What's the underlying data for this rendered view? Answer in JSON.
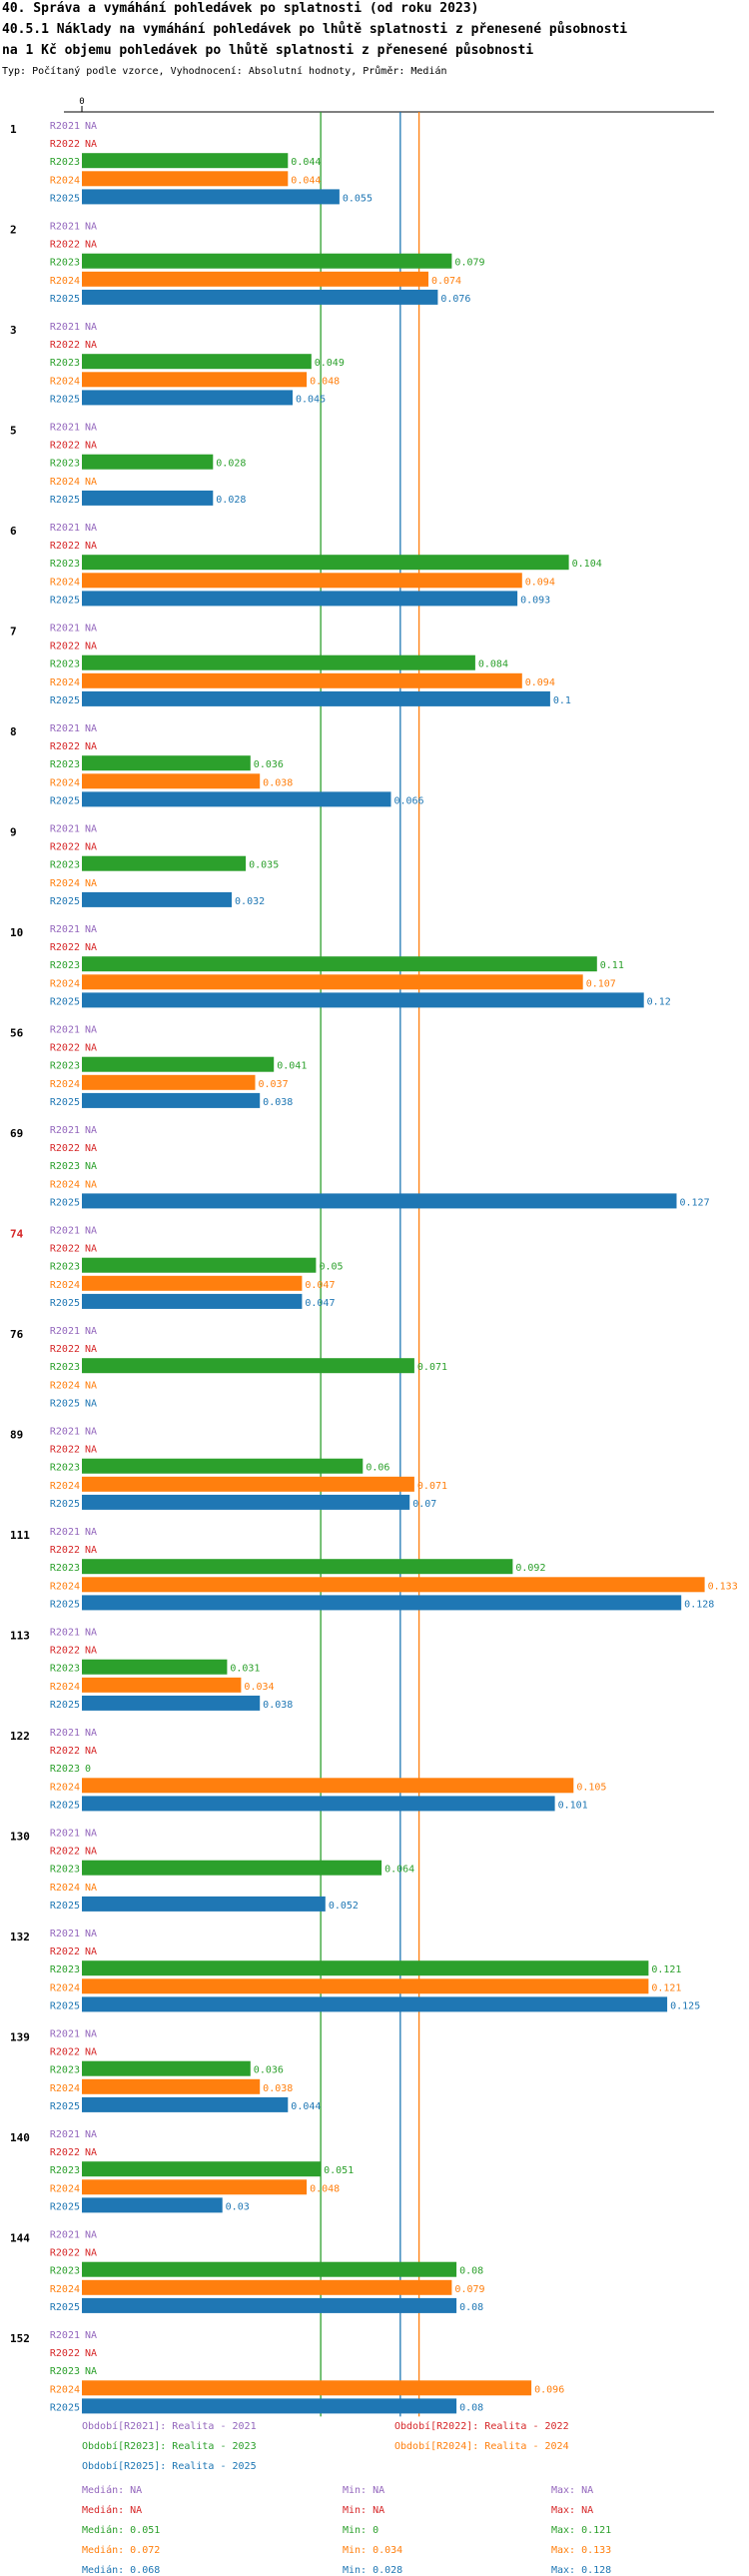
{
  "header": {
    "title1": "40. Správa a vymáhání pohledávek po splatnosti (od roku 2023)",
    "title2": "40.5.1 Náklady na vymáhání pohledávek po lhůtě splatnosti z přenesené působnosti",
    "title3": "na 1 Kč objemu pohledávek po lhůtě splatnosti z přenesené působnosti",
    "subtitle": "Typ: Počítaný podle vzorce, Vyhodnocení: Absolutní hodnoty, Průměr: Medián"
  },
  "colors": {
    "R2021": "#9467bd",
    "R2022": "#d62728",
    "R2023": "#2ca02c",
    "R2024": "#ff7f0e",
    "R2025": "#1f77b4",
    "highlight_group": "#d62728",
    "axis": "#000000"
  },
  "chart_data": {
    "type": "bar",
    "orientation": "horizontal",
    "xlim": [
      0,
      0.135
    ],
    "x_tick_labels": [
      "0"
    ],
    "series_names": [
      "R2021",
      "R2022",
      "R2023",
      "R2024",
      "R2025"
    ],
    "na_label": "NA",
    "highlighted_group": "74",
    "groups": [
      {
        "label": "1",
        "values": [
          null,
          null,
          0.044,
          0.044,
          0.055
        ],
        "texts": [
          "NA",
          "NA",
          "0.044",
          "0.044",
          "0.055"
        ]
      },
      {
        "label": "2",
        "values": [
          null,
          null,
          0.079,
          0.074,
          0.076
        ],
        "texts": [
          "NA",
          "NA",
          "0.079",
          "0.074",
          "0.076"
        ]
      },
      {
        "label": "3",
        "values": [
          null,
          null,
          0.049,
          0.048,
          0.045
        ],
        "texts": [
          "NA",
          "NA",
          "0.049",
          "0.048",
          "0.045"
        ]
      },
      {
        "label": "5",
        "values": [
          null,
          null,
          0.028,
          null,
          0.028
        ],
        "texts": [
          "NA",
          "NA",
          "0.028",
          "NA",
          "0.028"
        ]
      },
      {
        "label": "6",
        "values": [
          null,
          null,
          0.104,
          0.094,
          0.093
        ],
        "texts": [
          "NA",
          "NA",
          "0.104",
          "0.094",
          "0.093"
        ]
      },
      {
        "label": "7",
        "values": [
          null,
          null,
          0.084,
          0.094,
          0.1
        ],
        "texts": [
          "NA",
          "NA",
          "0.084",
          "0.094",
          "0.1"
        ]
      },
      {
        "label": "8",
        "values": [
          null,
          null,
          0.036,
          0.038,
          0.066
        ],
        "texts": [
          "NA",
          "NA",
          "0.036",
          "0.038",
          "0.066"
        ]
      },
      {
        "label": "9",
        "values": [
          null,
          null,
          0.035,
          null,
          0.032
        ],
        "texts": [
          "NA",
          "NA",
          "0.035",
          "NA",
          "0.032"
        ]
      },
      {
        "label": "10",
        "values": [
          null,
          null,
          0.11,
          0.107,
          0.12
        ],
        "texts": [
          "NA",
          "NA",
          "0.11",
          "0.107",
          "0.12"
        ]
      },
      {
        "label": "56",
        "values": [
          null,
          null,
          0.041,
          0.037,
          0.038
        ],
        "texts": [
          "NA",
          "NA",
          "0.041",
          "0.037",
          "0.038"
        ]
      },
      {
        "label": "69",
        "values": [
          null,
          null,
          null,
          null,
          0.127
        ],
        "texts": [
          "NA",
          "NA",
          "NA",
          "NA",
          "0.127"
        ]
      },
      {
        "label": "74",
        "values": [
          null,
          null,
          0.05,
          0.047,
          0.047
        ],
        "texts": [
          "NA",
          "NA",
          "0.05",
          "0.047",
          "0.047"
        ]
      },
      {
        "label": "76",
        "values": [
          null,
          null,
          0.071,
          null,
          null
        ],
        "texts": [
          "NA",
          "NA",
          "0.071",
          "NA",
          "NA"
        ]
      },
      {
        "label": "89",
        "values": [
          null,
          null,
          0.06,
          0.071,
          0.07
        ],
        "texts": [
          "NA",
          "NA",
          "0.06",
          "0.071",
          "0.07"
        ]
      },
      {
        "label": "111",
        "values": [
          null,
          null,
          0.092,
          0.133,
          0.128
        ],
        "texts": [
          "NA",
          "NA",
          "0.092",
          "0.133",
          "0.128"
        ]
      },
      {
        "label": "113",
        "values": [
          null,
          null,
          0.031,
          0.034,
          0.038
        ],
        "texts": [
          "NA",
          "NA",
          "0.031",
          "0.034",
          "0.038"
        ]
      },
      {
        "label": "122",
        "values": [
          null,
          null,
          0,
          0.105,
          0.101
        ],
        "texts": [
          "NA",
          "NA",
          "0",
          "0.105",
          "0.101"
        ]
      },
      {
        "label": "130",
        "values": [
          null,
          null,
          0.064,
          null,
          0.052
        ],
        "texts": [
          "NA",
          "NA",
          "0.064",
          "NA",
          "0.052"
        ]
      },
      {
        "label": "132",
        "values": [
          null,
          null,
          0.121,
          0.121,
          0.125
        ],
        "texts": [
          "NA",
          "NA",
          "0.121",
          "0.121",
          "0.125"
        ]
      },
      {
        "label": "139",
        "values": [
          null,
          null,
          0.036,
          0.038,
          0.044
        ],
        "texts": [
          "NA",
          "NA",
          "0.036",
          "0.038",
          "0.044"
        ]
      },
      {
        "label": "140",
        "values": [
          null,
          null,
          0.051,
          0.048,
          0.03
        ],
        "texts": [
          "NA",
          "NA",
          "0.051",
          "0.048",
          "0.03"
        ]
      },
      {
        "label": "144",
        "values": [
          null,
          null,
          0.08,
          0.079,
          0.08
        ],
        "texts": [
          "NA",
          "NA",
          "0.08",
          "0.079",
          "0.08"
        ]
      },
      {
        "label": "152",
        "values": [
          null,
          null,
          null,
          0.096,
          0.08
        ],
        "texts": [
          "NA",
          "NA",
          "NA",
          "0.096",
          "0.08"
        ]
      }
    ],
    "reference_lines": [
      {
        "series": "R2023",
        "value": 0.051
      },
      {
        "series": "R2024",
        "value": 0.072
      },
      {
        "series": "R2025",
        "value": 0.068
      }
    ]
  },
  "legend": {
    "entries": [
      {
        "series": "R2021",
        "text": "Období[R2021]: Realita - 2021"
      },
      {
        "series": "R2022",
        "text": "Období[R2022]: Realita - 2022"
      },
      {
        "series": "R2023",
        "text": "Období[R2023]: Realita - 2023"
      },
      {
        "series": "R2024",
        "text": "Období[R2024]: Realita - 2024"
      },
      {
        "series": "R2025",
        "text": "Období[R2025]: Realita - 2025"
      }
    ],
    "stats": [
      {
        "series": "R2021",
        "median": "Medián: NA",
        "min": "Min: NA",
        "max": "Max: NA"
      },
      {
        "series": "R2022",
        "median": "Medián: NA",
        "min": "Min: NA",
        "max": "Max: NA"
      },
      {
        "series": "R2023",
        "median": "Medián: 0.051",
        "min": "Min: 0",
        "max": "Max: 0.121"
      },
      {
        "series": "R2024",
        "median": "Medián: 0.072",
        "min": "Min: 0.034",
        "max": "Max: 0.133"
      },
      {
        "series": "R2025",
        "median": "Medián: 0.068",
        "min": "Min: 0.028",
        "max": "Max: 0.128"
      }
    ]
  }
}
